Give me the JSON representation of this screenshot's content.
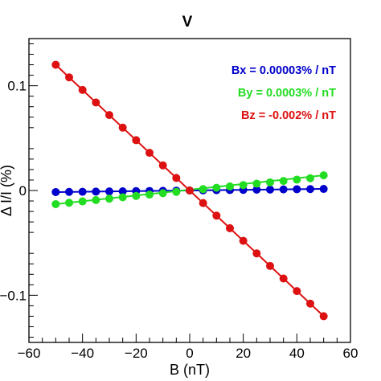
{
  "chart_data": {
    "type": "scatter",
    "title": "V",
    "xlabel": "B (nT)",
    "ylabel": "Δ I/I (%)",
    "xlim": [
      -60,
      60
    ],
    "ylim": [
      -0.145,
      0.145
    ],
    "x_ticks": [
      -60,
      -40,
      -20,
      0,
      20,
      40,
      60
    ],
    "x_tick_labels": [
      "−60",
      "−40",
      "−20",
      "0",
      "20",
      "40",
      "60"
    ],
    "y_ticks": [
      0.1,
      0,
      -0.1
    ],
    "y_tick_labels": [
      "0.1",
      "0",
      "−0.1"
    ],
    "grid": false,
    "legend_position": "top-right",
    "x": [
      -50,
      -45,
      -40,
      -35,
      -30,
      -25,
      -20,
      -15,
      -10,
      -5,
      0,
      5,
      10,
      15,
      20,
      25,
      30,
      35,
      40,
      45,
      50
    ],
    "series": [
      {
        "name": "Bx = 0.00003% / nT",
        "color": "#0000cc",
        "values": [
          -0.0015,
          -0.00135,
          -0.0012,
          -0.00105,
          -0.0009,
          -0.00075,
          -0.0006,
          -0.00045,
          -0.0003,
          -0.00015,
          0,
          0.00015,
          0.0003,
          0.00045,
          0.0006,
          0.00075,
          0.0009,
          0.00105,
          0.0012,
          0.00135,
          0.0015
        ]
      },
      {
        "name": "By = 0.0003% / nT",
        "color": "#22dd22",
        "values": [
          -0.013,
          -0.0117,
          -0.0104,
          -0.0091,
          -0.0078,
          -0.0065,
          -0.0052,
          -0.0039,
          -0.0026,
          -0.0013,
          0,
          0.0013,
          0.0026,
          0.0039,
          0.0052,
          0.0065,
          0.0078,
          0.0091,
          0.0104,
          0.0117,
          0.0145
        ]
      },
      {
        "name": "Bz = -0.002% / nT",
        "color": "#dd1111",
        "values": [
          0.12,
          0.108,
          0.096,
          0.084,
          0.072,
          0.06,
          0.048,
          0.036,
          0.024,
          0.012,
          0,
          -0.012,
          -0.024,
          -0.036,
          -0.048,
          -0.06,
          -0.072,
          -0.084,
          -0.096,
          -0.108,
          -0.12
        ]
      }
    ]
  }
}
